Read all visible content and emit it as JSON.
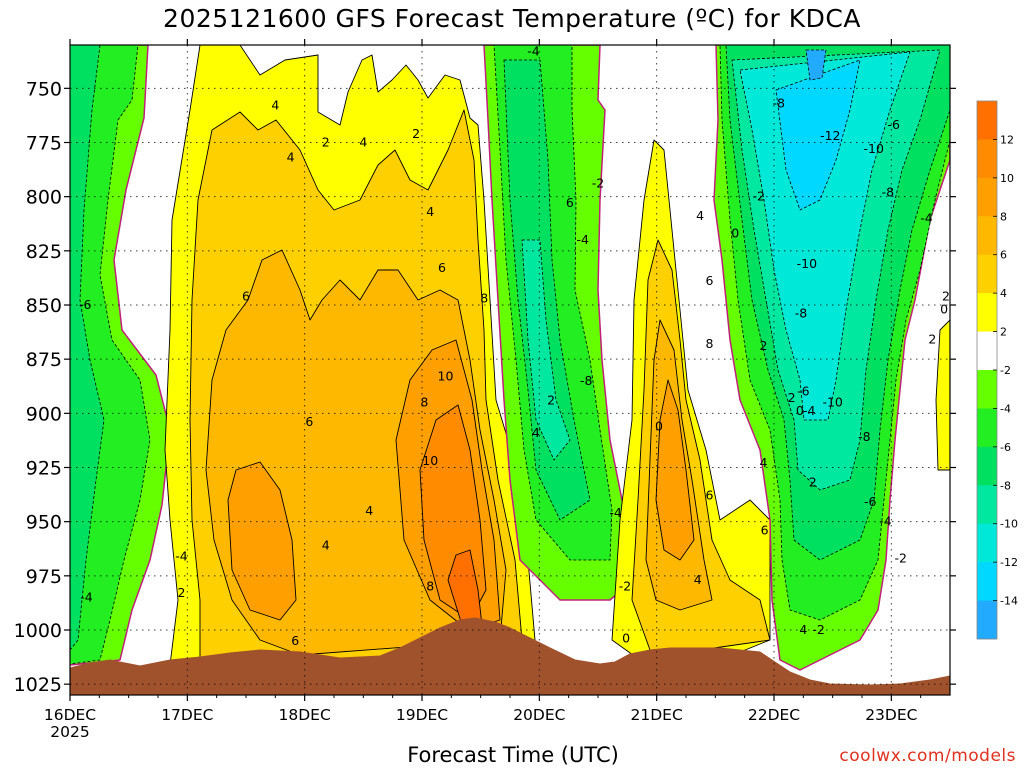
{
  "chart_data": {
    "type": "heatmap",
    "title": "2025121600 GFS Forecast Temperature (ºC) for KDCA",
    "xlabel": "Forecast Time (UTC)",
    "ylabel": "",
    "credit": "coolwx.com/models",
    "x_ticks": [
      "16DEC",
      "17DEC",
      "18DEC",
      "19DEC",
      "20DEC",
      "21DEC",
      "22DEC",
      "23DEC"
    ],
    "x_year": "2025",
    "y_ticks": [
      "750",
      "775",
      "800",
      "825",
      "850",
      "875",
      "900",
      "925",
      "950",
      "975",
      "1000",
      "1025"
    ],
    "ylim": [
      1030,
      730
    ],
    "xlim": [
      0,
      7.5
    ],
    "grid": true,
    "colorbar_ticks": [
      "12",
      "10",
      "8",
      "6",
      "4",
      "2",
      "-2",
      "-4",
      "-6",
      "-8",
      "-10",
      "-12",
      "-14"
    ],
    "colorbar_levels": [
      {
        "range": [
          12,
          14
        ],
        "color": "#ff7000"
      },
      {
        "range": [
          10,
          12
        ],
        "color": "#ff8c00"
      },
      {
        "range": [
          8,
          10
        ],
        "color": "#ffa000"
      },
      {
        "range": [
          6,
          8
        ],
        "color": "#ffb800"
      },
      {
        "range": [
          4,
          6
        ],
        "color": "#ffd000"
      },
      {
        "range": [
          2,
          4
        ],
        "color": "#ffff00"
      },
      {
        "range": [
          -2,
          2
        ],
        "color": "#ffffff"
      },
      {
        "range": [
          -4,
          -2
        ],
        "color": "#66ff00"
      },
      {
        "range": [
          -6,
          -4
        ],
        "color": "#22ee22"
      },
      {
        "range": [
          -8,
          -6
        ],
        "color": "#00e060"
      },
      {
        "range": [
          -10,
          -8
        ],
        "color": "#00e8a0"
      },
      {
        "range": [
          -12,
          -10
        ],
        "color": "#00e8d8"
      },
      {
        "range": [
          -14,
          -12
        ],
        "color": "#00d8ff"
      },
      {
        "range": [
          -16,
          -14
        ],
        "color": "#22aaff"
      }
    ],
    "terrain_color": "#a0522d",
    "zero_line_color": "#c0207a",
    "contour_labels": [
      {
        "t": 0.13,
        "p": 850,
        "v": "-6"
      },
      {
        "t": 0.14,
        "p": 985,
        "v": "-4"
      },
      {
        "t": 0.95,
        "p": 966,
        "v": "-4"
      },
      {
        "t": 0.95,
        "p": 983,
        "v": "2"
      },
      {
        "t": 1.5,
        "p": 846,
        "v": "6"
      },
      {
        "t": 1.75,
        "p": 758,
        "v": "4"
      },
      {
        "t": 1.88,
        "p": 782,
        "v": "4"
      },
      {
        "t": 2.18,
        "p": 775,
        "v": "2"
      },
      {
        "t": 2.5,
        "p": 775,
        "v": "4"
      },
      {
        "t": 2.04,
        "p": 904,
        "v": "6"
      },
      {
        "t": 2.18,
        "p": 961,
        "v": "4"
      },
      {
        "t": 1.92,
        "p": 1005,
        "v": "6"
      },
      {
        "t": 2.55,
        "p": 945,
        "v": "4"
      },
      {
        "t": 2.95,
        "p": 771,
        "v": "2"
      },
      {
        "t": 3.07,
        "p": 807,
        "v": "4"
      },
      {
        "t": 3.17,
        "p": 833,
        "v": "6"
      },
      {
        "t": 3.53,
        "p": 847,
        "v": "8"
      },
      {
        "t": 3.02,
        "p": 895,
        "v": "8"
      },
      {
        "t": 3.2,
        "p": 883,
        "v": "10"
      },
      {
        "t": 3.07,
        "p": 922,
        "v": "10"
      },
      {
        "t": 3.07,
        "p": 980,
        "v": "8"
      },
      {
        "t": 3.95,
        "p": 733,
        "v": "-4"
      },
      {
        "t": 4.1,
        "p": 894,
        "v": "2"
      },
      {
        "t": 3.97,
        "p": 909,
        "v": "4"
      },
      {
        "t": 4.26,
        "p": 803,
        "v": "6"
      },
      {
        "t": 4.37,
        "p": 820,
        "v": "-4"
      },
      {
        "t": 4.5,
        "p": 794,
        "v": "-2"
      },
      {
        "t": 4.4,
        "p": 885,
        "v": "-8"
      },
      {
        "t": 4.65,
        "p": 946,
        "v": "-4"
      },
      {
        "t": 4.73,
        "p": 980,
        "v": "-2"
      },
      {
        "t": 5.02,
        "p": 906,
        "v": "0"
      },
      {
        "t": 4.74,
        "p": 1004,
        "v": "0"
      },
      {
        "t": 5.37,
        "p": 809,
        "v": "4"
      },
      {
        "t": 5.45,
        "p": 839,
        "v": "6"
      },
      {
        "t": 5.67,
        "p": 817,
        "v": "0"
      },
      {
        "t": 5.87,
        "p": 800,
        "v": "-2"
      },
      {
        "t": 5.45,
        "p": 868,
        "v": "8"
      },
      {
        "t": 5.91,
        "p": 869,
        "v": "2"
      },
      {
        "t": 5.45,
        "p": 938,
        "v": "6"
      },
      {
        "t": 5.91,
        "p": 923,
        "v": "4"
      },
      {
        "t": 5.92,
        "p": 954,
        "v": "6"
      },
      {
        "t": 5.35,
        "p": 977,
        "v": "4"
      },
      {
        "t": 6.33,
        "p": 932,
        "v": "2"
      },
      {
        "t": 6.25,
        "p": 1000,
        "v": "4"
      },
      {
        "t": 6.22,
        "p": 899,
        "v": "0"
      },
      {
        "t": 6.38,
        "p": 1000,
        "v": "-2"
      },
      {
        "t": 6.04,
        "p": 757,
        "v": "-8"
      },
      {
        "t": 6.48,
        "p": 772,
        "v": "-12"
      },
      {
        "t": 6.85,
        "p": 778,
        "v": "-10"
      },
      {
        "t": 7.02,
        "p": 767,
        "v": "-6"
      },
      {
        "t": 6.97,
        "p": 798,
        "v": "-8"
      },
      {
        "t": 7.3,
        "p": 810,
        "v": "-4"
      },
      {
        "t": 6.28,
        "p": 831,
        "v": "-10"
      },
      {
        "t": 6.23,
        "p": 854,
        "v": "-8"
      },
      {
        "t": 6.25,
        "p": 890,
        "v": "-6"
      },
      {
        "t": 6.3,
        "p": 899,
        "v": "-4"
      },
      {
        "t": 6.5,
        "p": 895,
        "v": "-10"
      },
      {
        "t": 6.77,
        "p": 911,
        "v": "-8"
      },
      {
        "t": 6.82,
        "p": 941,
        "v": "-6"
      },
      {
        "t": 6.95,
        "p": 950,
        "v": "-4"
      },
      {
        "t": 7.08,
        "p": 967,
        "v": "-2"
      },
      {
        "t": 6.15,
        "p": 893,
        "v": "2"
      },
      {
        "t": 7.45,
        "p": 852,
        "v": "0"
      },
      {
        "t": 7.35,
        "p": 866,
        "v": "2"
      },
      {
        "t": 7.55,
        "p": 846,
        "v": "2"
      }
    ]
  }
}
